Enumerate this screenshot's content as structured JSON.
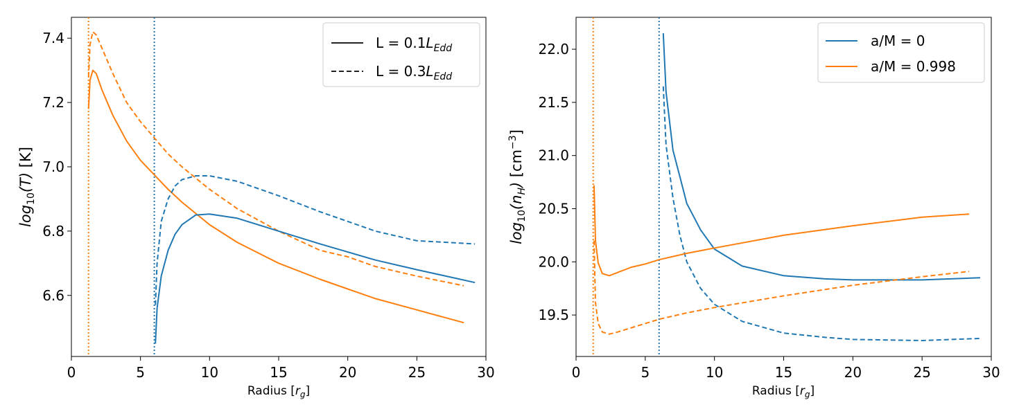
{
  "chart_data": [
    {
      "type": "line",
      "panel": "left",
      "xlabel": "Radius [r_g]",
      "ylabel": "log10(T) [K]",
      "xlim": [
        0,
        30
      ],
      "ylim": [
        6.41,
        7.465
      ],
      "xticks": [
        "0",
        "5",
        "10",
        "15",
        "20",
        "25",
        "30"
      ],
      "yticks": [
        "6.6",
        "6.8",
        "7.0",
        "7.2",
        "7.4"
      ],
      "legend_position": "top-right",
      "legend": [
        {
          "label": "L = 0.1",
          "sub": "Edd",
          "style": "solid",
          "color": "#222222"
        },
        {
          "label": "L = 0.3",
          "sub": "Edd",
          "style": "dashed",
          "color": "#222222"
        }
      ],
      "vlines": [
        {
          "x": 1.24,
          "color": "#ff7f0e",
          "style": "dotted"
        },
        {
          "x": 6.0,
          "color": "#1f77b4",
          "style": "dotted"
        }
      ],
      "series": [
        {
          "name": "a/M = 0.998, L = 0.1 L_Edd",
          "color": "#ff7f0e",
          "style": "solid",
          "x": [
            1.24,
            1.35,
            1.55,
            1.8,
            2.2,
            3,
            4,
            5,
            6,
            7,
            8,
            10,
            12,
            15,
            18,
            20,
            22,
            25,
            28.4
          ],
          "y": [
            7.18,
            7.27,
            7.3,
            7.29,
            7.24,
            7.16,
            7.08,
            7.02,
            6.975,
            6.93,
            6.89,
            6.82,
            6.765,
            6.7,
            6.65,
            6.62,
            6.59,
            6.555,
            6.515
          ]
        },
        {
          "name": "a/M = 0.998, L = 0.3 L_Edd",
          "color": "#ff7f0e",
          "style": "dashed",
          "x": [
            1.24,
            1.35,
            1.55,
            1.8,
            2.2,
            3,
            4,
            5,
            6,
            7,
            8,
            10,
            12,
            15,
            18,
            20,
            22,
            25,
            28.4
          ],
          "y": [
            7.28,
            7.38,
            7.42,
            7.41,
            7.37,
            7.29,
            7.2,
            7.14,
            7.09,
            7.04,
            7.0,
            6.93,
            6.87,
            6.8,
            6.74,
            6.72,
            6.69,
            6.66,
            6.63
          ]
        },
        {
          "name": "a/M = 0, L = 0.1 L_Edd",
          "color": "#1f77b4",
          "style": "solid",
          "x": [
            6.08,
            6.2,
            6.5,
            7,
            7.5,
            8,
            9,
            10,
            12,
            15,
            18,
            20,
            22,
            25,
            29.2
          ],
          "y": [
            6.45,
            6.56,
            6.66,
            6.74,
            6.79,
            6.82,
            6.85,
            6.853,
            6.84,
            6.8,
            6.76,
            6.735,
            6.71,
            6.68,
            6.64
          ]
        },
        {
          "name": "a/M = 0, L = 0.3 L_Edd",
          "color": "#1f77b4",
          "style": "dashed",
          "x": [
            6.08,
            6.2,
            6.5,
            7,
            7.5,
            8,
            9,
            10,
            12,
            15,
            18,
            20,
            22,
            25,
            29.2
          ],
          "y": [
            6.57,
            6.7,
            6.83,
            6.9,
            6.94,
            6.96,
            6.972,
            6.972,
            6.955,
            6.91,
            6.86,
            6.83,
            6.8,
            6.77,
            6.76
          ]
        }
      ]
    },
    {
      "type": "line",
      "panel": "right",
      "xlabel": "Radius [r_g]",
      "ylabel": "log10(n_H) [cm^-3]",
      "xlim": [
        0,
        30
      ],
      "ylim": [
        19.11,
        22.3
      ],
      "xticks": [
        "0",
        "5",
        "10",
        "15",
        "20",
        "25",
        "30"
      ],
      "yticks": [
        "19.5",
        "20.0",
        "20.5",
        "21.0",
        "21.5",
        "22.0"
      ],
      "legend_position": "top-right",
      "legend": [
        {
          "label": "a/M = 0",
          "style": "solid",
          "color": "#1f77b4"
        },
        {
          "label": "a/M = 0.998",
          "style": "solid",
          "color": "#ff7f0e"
        }
      ],
      "vlines": [
        {
          "x": 1.24,
          "color": "#ff7f0e",
          "style": "dotted"
        },
        {
          "x": 6.0,
          "color": "#1f77b4",
          "style": "dotted"
        }
      ],
      "series": [
        {
          "name": "a/M = 0, solid",
          "color": "#1f77b4",
          "style": "solid",
          "x": [
            6.3,
            6.5,
            7,
            7.5,
            8,
            9,
            10,
            12,
            15,
            18,
            20,
            25,
            29.2
          ],
          "y": [
            22.15,
            21.6,
            21.05,
            20.8,
            20.55,
            20.3,
            20.12,
            19.96,
            19.87,
            19.84,
            19.83,
            19.83,
            19.85
          ]
        },
        {
          "name": "a/M = 0, dashed",
          "color": "#1f77b4",
          "style": "dashed",
          "x": [
            6.3,
            6.5,
            7,
            7.5,
            8,
            9,
            10,
            12,
            15,
            18,
            20,
            25,
            29.2
          ],
          "y": [
            21.65,
            21.1,
            20.6,
            20.25,
            20.0,
            19.75,
            19.6,
            19.44,
            19.33,
            19.29,
            19.27,
            19.26,
            19.28
          ]
        },
        {
          "name": "a/M = 0.998, solid",
          "color": "#ff7f0e",
          "style": "solid",
          "x": [
            1.3,
            1.4,
            1.6,
            1.9,
            2.4,
            3,
            4,
            5,
            6,
            8,
            10,
            15,
            20,
            25,
            28.4
          ],
          "y": [
            20.72,
            20.2,
            19.99,
            19.89,
            19.87,
            19.9,
            19.95,
            19.98,
            20.02,
            20.08,
            20.13,
            20.25,
            20.34,
            20.42,
            20.45
          ]
        },
        {
          "name": "a/M = 0.998, dashed",
          "color": "#ff7f0e",
          "style": "dashed",
          "x": [
            1.3,
            1.4,
            1.6,
            1.9,
            2.4,
            3,
            4,
            5,
            6,
            8,
            10,
            15,
            20,
            25,
            28.4
          ],
          "y": [
            20.2,
            19.62,
            19.42,
            19.34,
            19.32,
            19.34,
            19.38,
            19.42,
            19.46,
            19.52,
            19.57,
            19.68,
            19.78,
            19.86,
            19.91
          ]
        }
      ]
    }
  ]
}
